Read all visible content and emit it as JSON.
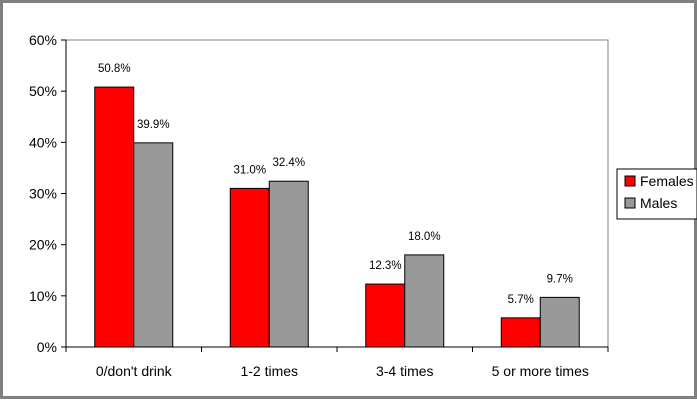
{
  "chart_data": {
    "type": "bar",
    "categories": [
      "0/don't drink",
      "1-2 times",
      "3-4 times",
      "5 or more times"
    ],
    "series": [
      {
        "name": "Females",
        "color": "#ff0000",
        "values": [
          50.8,
          31.0,
          12.3,
          5.7
        ],
        "labels": [
          "50.8%",
          "31.0%",
          "12.3%",
          "5.7%"
        ]
      },
      {
        "name": "Males",
        "color": "#999999",
        "values": [
          39.9,
          32.4,
          18.0,
          9.7
        ],
        "labels": [
          "39.9%",
          "32.4%",
          "18.0%",
          "9.7%"
        ]
      }
    ],
    "y_ticks": [
      "0%",
      "10%",
      "20%",
      "30%",
      "40%",
      "50%",
      "60%"
    ],
    "ylim": [
      0,
      60
    ],
    "grid": false,
    "legend_position": "right",
    "title": "",
    "xlabel": "",
    "ylabel": ""
  }
}
